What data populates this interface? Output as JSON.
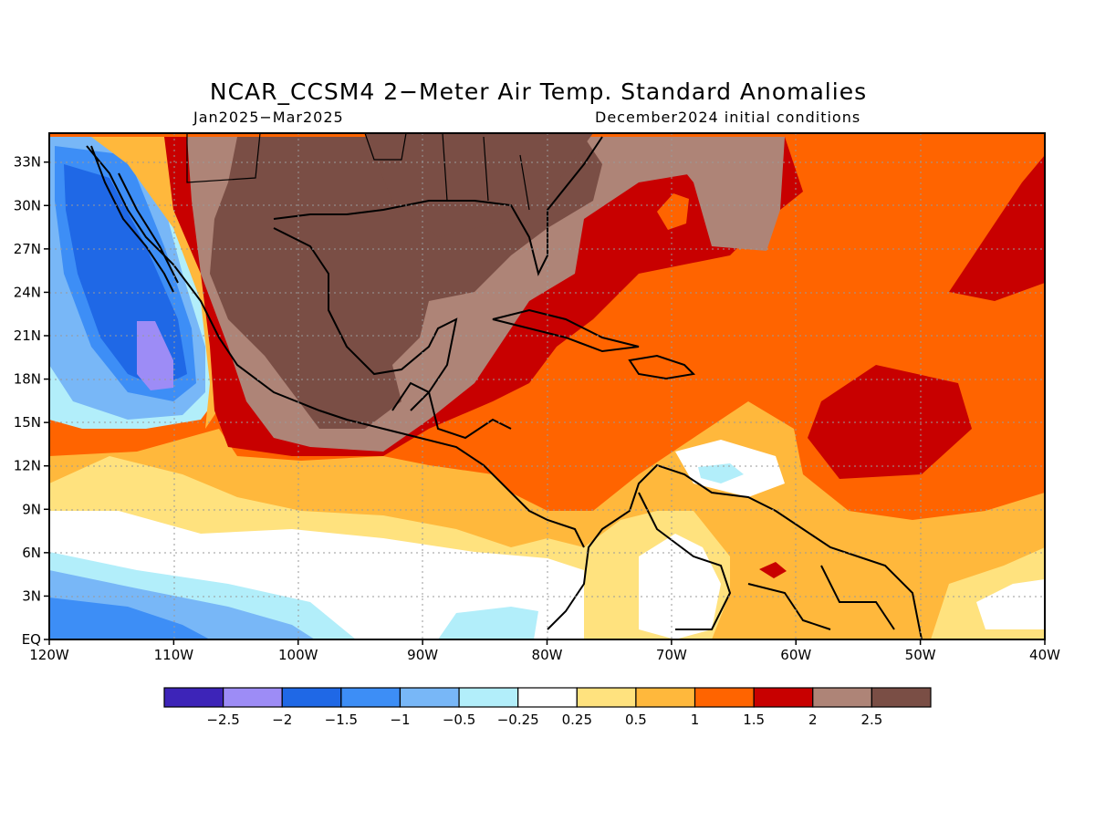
{
  "header": {
    "title": "NCAR_CCSM4 2−Meter Air Temp. Standard Anomalies",
    "period": "Jan2025−Mar2025",
    "initial_conditions": "December2024 initial conditions"
  },
  "map": {
    "lon_ticks": [
      "120W",
      "110W",
      "100W",
      "90W",
      "80W",
      "70W",
      "60W",
      "50W",
      "40W"
    ],
    "lat_ticks": [
      "EQ",
      "3N",
      "6N",
      "9N",
      "12N",
      "15N",
      "18N",
      "21N",
      "24N",
      "27N",
      "30N",
      "33N"
    ],
    "lon_range": [
      -120,
      -40
    ],
    "lat_range": [
      0,
      35
    ],
    "grid": "dotted",
    "coastlines": true
  },
  "colorbar": {
    "labels": [
      "−2.5",
      "−2",
      "−1.5",
      "−1",
      "−0.5",
      "−0.25",
      "0.25",
      "0.5",
      "1",
      "1.5",
      "2",
      "2.5"
    ],
    "colors": [
      "#3d24b8",
      "#9d8cf6",
      "#1f68e6",
      "#3d8ef6",
      "#78b7f7",
      "#b2eefa",
      "#ffffff",
      "#ffe27e",
      "#ffb83c",
      "#ff6400",
      "#c80000",
      "#ae8477",
      "#7a4e45"
    ]
  }
}
